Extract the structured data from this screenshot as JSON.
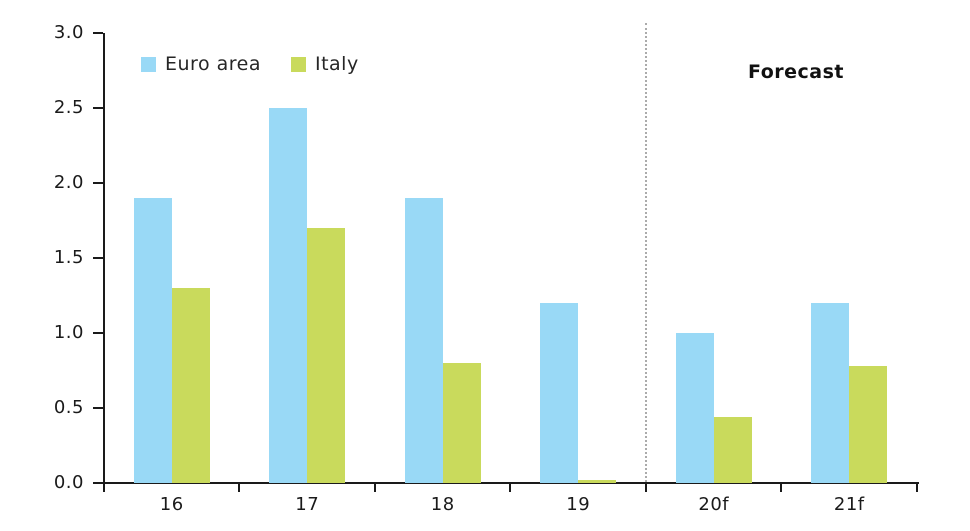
{
  "chart_data": {
    "type": "bar",
    "title": "",
    "xlabel": "",
    "ylabel": "",
    "categories": [
      "16",
      "17",
      "18",
      "19",
      "20f",
      "21f"
    ],
    "series": [
      {
        "name": "Euro area",
        "color": "#99d9f6",
        "values": [
          1.9,
          2.5,
          1.9,
          1.2,
          1.0,
          1.2
        ]
      },
      {
        "name": "Italy",
        "color": "#c9da5c",
        "values": [
          1.3,
          1.7,
          0.8,
          0.02,
          0.44,
          0.78
        ]
      }
    ],
    "ylim": [
      0.0,
      3.0
    ],
    "ytick_step": 0.5,
    "ytick_labels": [
      "0.0",
      "0.5",
      "1.0",
      "1.5",
      "2.0",
      "2.5",
      "3.0"
    ],
    "grid": false,
    "legend_position": "top-left",
    "axis_color": "#1a1a1a",
    "annotations": [
      {
        "text": "Forecast",
        "style": "bold",
        "region": "forecast"
      }
    ],
    "separator": {
      "style": "dotted-vertical-line",
      "color": "#ababab",
      "after_category_index": 4,
      "meaning": "history vs forecast divider"
    }
  }
}
